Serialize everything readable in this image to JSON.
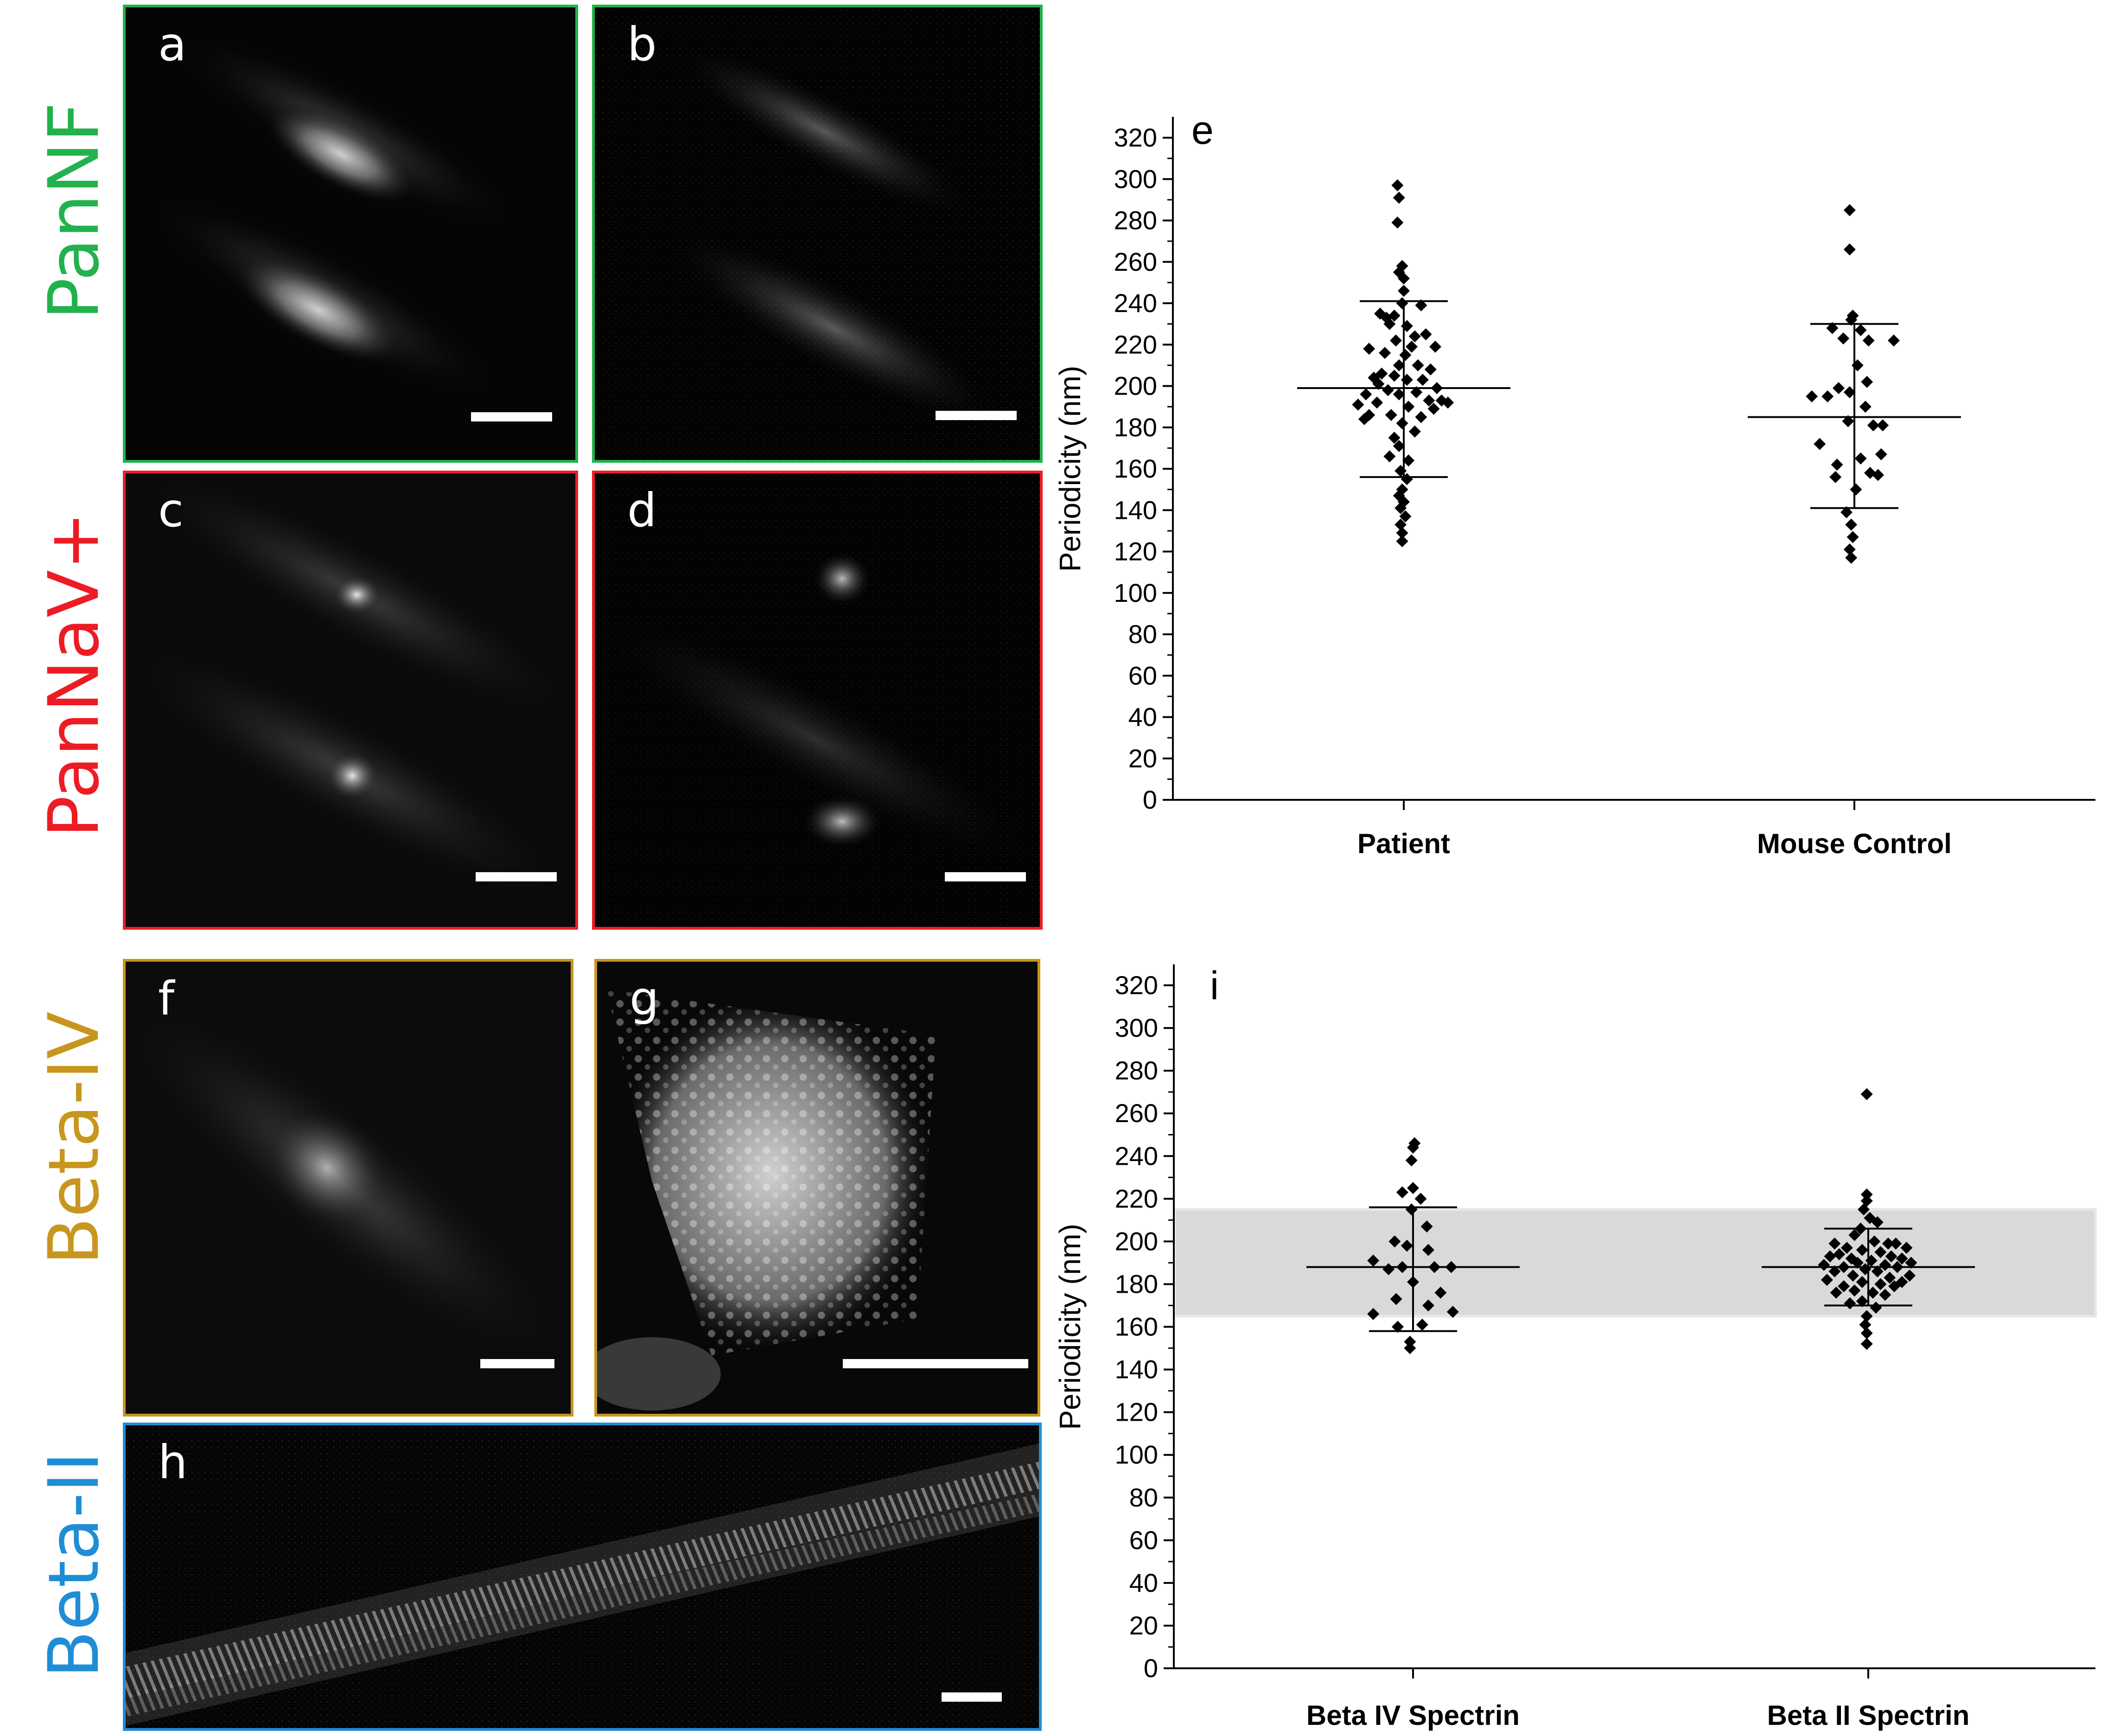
{
  "row_labels": {
    "pannf": {
      "text": "PanNF",
      "color": "#22b14c"
    },
    "pannav": {
      "text": "PanNaV+",
      "color": "#ed1c24"
    },
    "betaiv": {
      "text": "Beta-IV",
      "color": "#c8961e"
    },
    "betaii": {
      "text": "Beta-II",
      "color": "#1f8dd6"
    }
  },
  "panels": {
    "a": {
      "letter": "a",
      "border": "#22b14c"
    },
    "b": {
      "letter": "b",
      "border": "#22b14c"
    },
    "c": {
      "letter": "c",
      "border": "#ed1c24"
    },
    "d": {
      "letter": "d",
      "border": "#ed1c24"
    },
    "f": {
      "letter": "f",
      "border": "#c8961e"
    },
    "g": {
      "letter": "g",
      "border": "#c8961e"
    },
    "h": {
      "letter": "h",
      "border": "#1f8dd6"
    }
  },
  "chart_data": [
    {
      "type": "scatter",
      "panel_letter": "e",
      "ylabel": "Periodicity (nm)",
      "xlabel": "",
      "ylim": [
        0,
        320
      ],
      "yticks": [
        0,
        20,
        40,
        60,
        80,
        100,
        120,
        140,
        160,
        180,
        200,
        220,
        240,
        260,
        280,
        300,
        320
      ],
      "categories": [
        "Patient",
        "Mouse Control"
      ],
      "groups": [
        {
          "category": "Patient",
          "mean": 199,
          "sd_low": 156,
          "sd_high": 241,
          "points": [
            [
              -0.04,
              297
            ],
            [
              -0.03,
              291
            ],
            [
              -0.04,
              279
            ],
            [
              -0.01,
              258
            ],
            [
              -0.03,
              255
            ],
            [
              0.0,
              252
            ],
            [
              0.0,
              246
            ],
            [
              -0.01,
              240
            ],
            [
              0.11,
              239
            ],
            [
              -0.15,
              235
            ],
            [
              -0.11,
              233
            ],
            [
              -0.06,
              234
            ],
            [
              -0.09,
              230
            ],
            [
              0.02,
              229
            ],
            [
              0.07,
              224
            ],
            [
              -0.05,
              222
            ],
            [
              0.14,
              225
            ],
            [
              0.05,
              219
            ],
            [
              0.2,
              219
            ],
            [
              -0.22,
              218
            ],
            [
              -0.12,
              216
            ],
            [
              0.01,
              215
            ],
            [
              -0.03,
              210
            ],
            [
              0.09,
              210
            ],
            [
              -0.06,
              205
            ],
            [
              0.17,
              208
            ],
            [
              -0.14,
              206
            ],
            [
              0.12,
              203
            ],
            [
              -0.19,
              204
            ],
            [
              0.02,
              203
            ],
            [
              -0.16,
              201
            ],
            [
              0.21,
              199
            ],
            [
              -0.1,
              198
            ],
            [
              0.08,
              197
            ],
            [
              -0.03,
              196
            ],
            [
              -0.24,
              196
            ],
            [
              0.24,
              193
            ],
            [
              -0.17,
              192
            ],
            [
              0.16,
              193
            ],
            [
              0.28,
              192
            ],
            [
              -0.29,
              191
            ],
            [
              0.03,
              190
            ],
            [
              0.19,
              189
            ],
            [
              -0.22,
              186
            ],
            [
              -0.25,
              184
            ],
            [
              0.11,
              185
            ],
            [
              -0.08,
              186
            ],
            [
              -0.01,
              182
            ],
            [
              0.07,
              178
            ],
            [
              -0.06,
              175
            ],
            [
              -0.03,
              171
            ],
            [
              -0.09,
              166
            ],
            [
              0.03,
              164
            ],
            [
              -0.02,
              159
            ],
            [
              0.02,
              155
            ],
            [
              -0.01,
              150
            ],
            [
              -0.03,
              147
            ],
            [
              0.0,
              144
            ],
            [
              -0.02,
              141
            ],
            [
              0.01,
              137
            ],
            [
              -0.02,
              133
            ],
            [
              -0.01,
              129
            ],
            [
              -0.01,
              125
            ]
          ]
        },
        {
          "category": "Mouse Control",
          "mean": 185,
          "sd_low": 141,
          "sd_high": 230,
          "points": [
            [
              -0.03,
              285
            ],
            [
              -0.03,
              266
            ],
            [
              -0.01,
              234
            ],
            [
              -0.02,
              232
            ],
            [
              -0.14,
              228
            ],
            [
              0.04,
              227
            ],
            [
              -0.07,
              223
            ],
            [
              0.09,
              222
            ],
            [
              0.25,
              222
            ],
            [
              0.02,
              210
            ],
            [
              0.08,
              202
            ],
            [
              -0.1,
              199
            ],
            [
              -0.03,
              197
            ],
            [
              -0.17,
              195
            ],
            [
              -0.27,
              195
            ],
            [
              0.07,
              190
            ],
            [
              -0.04,
              183
            ],
            [
              0.18,
              181
            ],
            [
              0.12,
              181
            ],
            [
              -0.22,
              172
            ],
            [
              0.17,
              167
            ],
            [
              0.04,
              165
            ],
            [
              -0.11,
              162
            ],
            [
              0.1,
              158
            ],
            [
              0.15,
              157
            ],
            [
              -0.12,
              156
            ],
            [
              0.01,
              150
            ],
            [
              -0.05,
              139
            ],
            [
              -0.02,
              133
            ],
            [
              -0.01,
              127
            ],
            [
              -0.03,
              121
            ],
            [
              -0.02,
              117
            ]
          ]
        }
      ]
    },
    {
      "type": "scatter",
      "panel_letter": "i",
      "ylabel": "Periodicity (nm)",
      "xlabel": "",
      "ylim": [
        0,
        320
      ],
      "yticks": [
        0,
        20,
        40,
        60,
        80,
        100,
        120,
        140,
        160,
        180,
        200,
        220,
        240,
        260,
        280,
        300,
        320
      ],
      "categories": [
        "Beta IV Spectrin",
        "Beta II Spectrin"
      ],
      "shaded_band": [
        165,
        215
      ],
      "groups": [
        {
          "category": "Beta IV Spectrin",
          "mean": 188,
          "sd_low": 158,
          "sd_high": 216,
          "points": [
            [
              0.01,
              246
            ],
            [
              0.0,
              244
            ],
            [
              -0.01,
              238
            ],
            [
              0.0,
              225
            ],
            [
              -0.07,
              223
            ],
            [
              0.05,
              220
            ],
            [
              -0.01,
              215
            ],
            [
              0.09,
              207
            ],
            [
              -0.12,
              200
            ],
            [
              -0.04,
              198
            ],
            [
              0.1,
              196
            ],
            [
              -0.26,
              191
            ],
            [
              -0.07,
              188
            ],
            [
              0.14,
              188
            ],
            [
              0.25,
              188
            ],
            [
              -0.16,
              187
            ],
            [
              0.0,
              181
            ],
            [
              0.18,
              176
            ],
            [
              -0.11,
              173
            ],
            [
              0.1,
              170
            ],
            [
              0.26,
              167
            ],
            [
              -0.26,
              166
            ],
            [
              -0.1,
              160
            ],
            [
              0.06,
              161
            ],
            [
              -0.02,
              153
            ],
            [
              -0.02,
              150
            ]
          ]
        },
        {
          "category": "Beta II Spectrin",
          "mean": 188,
          "sd_low": 170,
          "sd_high": 206,
          "points": [
            [
              -0.01,
              269
            ],
            [
              -0.01,
              222
            ],
            [
              -0.01,
              219
            ],
            [
              -0.03,
              215
            ],
            [
              0.01,
              211
            ],
            [
              0.06,
              209
            ],
            [
              -0.05,
              206
            ],
            [
              -0.09,
              203
            ],
            [
              0.04,
              200
            ],
            [
              0.13,
              199
            ],
            [
              -0.22,
              199
            ],
            [
              0.18,
              199
            ],
            [
              -0.14,
              197
            ],
            [
              0.25,
              197
            ],
            [
              -0.04,
              196
            ],
            [
              0.08,
              195
            ],
            [
              -0.19,
              194
            ],
            [
              0.15,
              193
            ],
            [
              -0.25,
              193
            ],
            [
              0.22,
              192
            ],
            [
              -0.11,
              192
            ],
            [
              0.02,
              191
            ],
            [
              -0.07,
              190
            ],
            [
              0.28,
              190
            ],
            [
              -0.29,
              189
            ],
            [
              0.11,
              189
            ],
            [
              -0.16,
              188
            ],
            [
              0.19,
              188
            ],
            [
              -0.02,
              187
            ],
            [
              0.06,
              186
            ],
            [
              -0.22,
              186
            ],
            [
              0.27,
              184
            ],
            [
              -0.1,
              184
            ],
            [
              0.14,
              183
            ],
            [
              -0.27,
              182
            ],
            [
              0.22,
              181
            ],
            [
              -0.04,
              181
            ],
            [
              0.08,
              180
            ],
            [
              -0.16,
              179
            ],
            [
              0.17,
              179
            ],
            [
              -0.09,
              177
            ],
            [
              0.03,
              176
            ],
            [
              -0.21,
              176
            ],
            [
              0.11,
              175
            ],
            [
              -0.04,
              172
            ],
            [
              -0.12,
              171
            ],
            [
              0.05,
              169
            ],
            [
              -0.01,
              165
            ],
            [
              -0.02,
              161
            ],
            [
              -0.01,
              157
            ],
            [
              -0.01,
              152
            ]
          ]
        }
      ]
    }
  ]
}
